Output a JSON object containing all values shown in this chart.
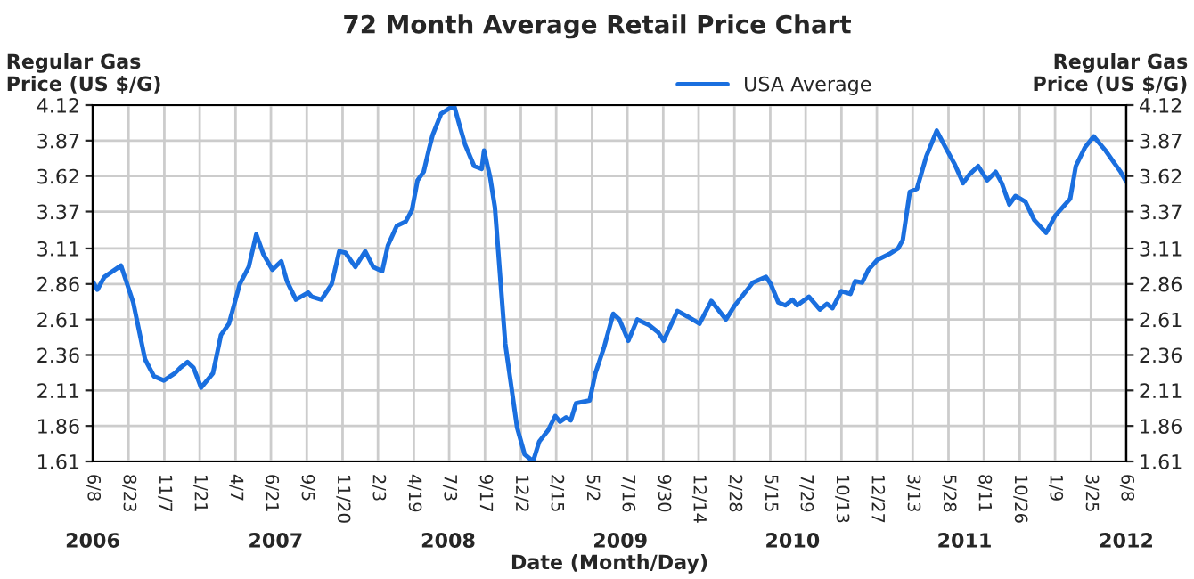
{
  "chart_data": {
    "type": "line",
    "title": "72 Month Average Retail Price Chart",
    "xlabel": "Date (Month/Day)",
    "ylabel": "Regular Gas\nPrice (US $/G)",
    "y2label": "Regular Gas\nPrice (US $/G)",
    "x": [
      "2006-06-08",
      "2006-06-18",
      "2006-07-03",
      "2006-08-07",
      "2006-09-02",
      "2006-09-27",
      "2006-10-16",
      "2006-11-06",
      "2006-11-29",
      "2006-12-11",
      "2006-12-26",
      "2007-01-08",
      "2007-01-24",
      "2007-02-18",
      "2007-03-07",
      "2007-03-24",
      "2007-04-16",
      "2007-05-05",
      "2007-05-21",
      "2007-06-05",
      "2007-06-24",
      "2007-07-13",
      "2007-07-25",
      "2007-08-13",
      "2007-09-08",
      "2007-09-16",
      "2007-10-06",
      "2007-10-28",
      "2007-11-13",
      "2007-11-26",
      "2007-12-17",
      "2008-01-07",
      "2008-01-24",
      "2008-02-12",
      "2008-02-24",
      "2008-03-14",
      "2008-04-02",
      "2008-04-15",
      "2008-04-27",
      "2008-05-10",
      "2008-05-22",
      "2008-05-29",
      "2008-06-16",
      "2008-07-05",
      "2008-07-14",
      "2008-07-24",
      "2008-08-06",
      "2008-08-25",
      "2008-09-10",
      "2008-09-15",
      "2008-09-28",
      "2008-10-08",
      "2008-10-30",
      "2008-11-24",
      "2008-12-10",
      "2008-12-28",
      "2009-01-10",
      "2009-01-29",
      "2009-02-13",
      "2009-02-23",
      "2009-03-08",
      "2009-03-18",
      "2009-03-29",
      "2009-04-27",
      "2009-05-09",
      "2009-05-28",
      "2009-06-16",
      "2009-06-29",
      "2009-07-18",
      "2009-08-06",
      "2009-08-31",
      "2009-09-19",
      "2009-10-01",
      "2009-10-30",
      "2009-11-21",
      "2009-12-16",
      "2010-01-10",
      "2010-02-10",
      "2010-03-01",
      "2010-03-20",
      "2010-04-08",
      "2010-05-06",
      "2010-05-16",
      "2010-06-01",
      "2010-06-16",
      "2010-07-01",
      "2010-07-11",
      "2010-08-05",
      "2010-08-28",
      "2010-09-12",
      "2010-09-24",
      "2010-10-13",
      "2010-11-01",
      "2010-11-11",
      "2010-11-26",
      "2010-12-09",
      "2010-12-28",
      "2011-01-22",
      "2011-02-10",
      "2011-02-20",
      "2011-03-07",
      "2011-03-22",
      "2011-04-11",
      "2011-05-03",
      "2011-05-22",
      "2011-06-09",
      "2011-06-28",
      "2011-07-11",
      "2011-07-30",
      "2011-08-18",
      "2011-09-05",
      "2011-09-18",
      "2011-10-04",
      "2011-10-17",
      "2011-11-07",
      "2011-11-26",
      "2011-12-21",
      "2012-01-09",
      "2012-02-10",
      "2012-02-22",
      "2012-03-12",
      "2012-03-31",
      "2012-04-25",
      "2012-05-14",
      "2012-05-27",
      "2012-06-08"
    ],
    "series": [
      {
        "name": "USA Average",
        "color": "#1a6fdf",
        "values": [
          2.88,
          2.82,
          2.91,
          2.99,
          2.73,
          2.33,
          2.21,
          2.18,
          2.23,
          2.27,
          2.31,
          2.27,
          2.13,
          2.23,
          2.5,
          2.58,
          2.86,
          2.98,
          3.21,
          3.07,
          2.96,
          3.02,
          2.88,
          2.75,
          2.8,
          2.77,
          2.75,
          2.86,
          3.09,
          3.08,
          2.98,
          3.09,
          2.98,
          2.95,
          3.13,
          3.27,
          3.3,
          3.38,
          3.59,
          3.65,
          3.82,
          3.91,
          4.06,
          4.1,
          4.11,
          3.99,
          3.84,
          3.69,
          3.67,
          3.8,
          3.61,
          3.4,
          2.44,
          1.85,
          1.66,
          1.61,
          1.75,
          1.83,
          1.93,
          1.89,
          1.92,
          1.9,
          2.02,
          2.04,
          2.23,
          2.42,
          2.65,
          2.61,
          2.46,
          2.61,
          2.57,
          2.52,
          2.46,
          2.67,
          2.63,
          2.58,
          2.74,
          2.61,
          2.71,
          2.79,
          2.87,
          2.91,
          2.86,
          2.73,
          2.71,
          2.75,
          2.71,
          2.77,
          2.68,
          2.72,
          2.69,
          2.81,
          2.79,
          2.88,
          2.87,
          2.96,
          3.03,
          3.07,
          3.11,
          3.17,
          3.51,
          3.53,
          3.76,
          3.94,
          3.82,
          3.71,
          3.57,
          3.63,
          3.69,
          3.59,
          3.65,
          3.57,
          3.42,
          3.48,
          3.44,
          3.31,
          3.22,
          3.34,
          3.46,
          3.69,
          3.82,
          3.9,
          3.8,
          3.71,
          3.65,
          3.58
        ]
      }
    ],
    "xlim": [
      "2006-06-08",
      "2012-06-08"
    ],
    "xticks": [
      {
        "value": "2006-06-08",
        "label": "6/8"
      },
      {
        "value": "2006-08-23",
        "label": "8/23"
      },
      {
        "value": "2006-11-07",
        "label": "11/7"
      },
      {
        "value": "2007-01-21",
        "label": "1/21"
      },
      {
        "value": "2007-04-07",
        "label": "4/7"
      },
      {
        "value": "2007-06-21",
        "label": "6/21"
      },
      {
        "value": "2007-09-05",
        "label": "9/5"
      },
      {
        "value": "2007-11-20",
        "label": "11/20"
      },
      {
        "value": "2008-02-03",
        "label": "2/3"
      },
      {
        "value": "2008-04-19",
        "label": "4/19"
      },
      {
        "value": "2008-07-03",
        "label": "7/3"
      },
      {
        "value": "2008-09-17",
        "label": "9/17"
      },
      {
        "value": "2008-12-02",
        "label": "12/2"
      },
      {
        "value": "2009-02-15",
        "label": "2/15"
      },
      {
        "value": "2009-05-02",
        "label": "5/2"
      },
      {
        "value": "2009-07-16",
        "label": "7/16"
      },
      {
        "value": "2009-09-30",
        "label": "9/30"
      },
      {
        "value": "2009-12-14",
        "label": "12/14"
      },
      {
        "value": "2010-02-28",
        "label": "2/28"
      },
      {
        "value": "2010-05-15",
        "label": "5/15"
      },
      {
        "value": "2010-07-29",
        "label": "7/29"
      },
      {
        "value": "2010-10-13",
        "label": "10/13"
      },
      {
        "value": "2010-12-27",
        "label": "12/27"
      },
      {
        "value": "2011-03-13",
        "label": "3/13"
      },
      {
        "value": "2011-05-28",
        "label": "5/28"
      },
      {
        "value": "2011-08-11",
        "label": "8/11"
      },
      {
        "value": "2011-10-26",
        "label": "10/26"
      },
      {
        "value": "2012-01-09",
        "label": "1/9"
      },
      {
        "value": "2012-03-25",
        "label": "3/25"
      },
      {
        "value": "2012-06-08",
        "label": "6/8"
      }
    ],
    "x2lim": [
      "2006-06-08",
      "2012-06-08"
    ],
    "x2ticks": [
      {
        "value": "2006-06-08",
        "label": "2006"
      },
      {
        "value": "2007-07-01",
        "label": "2007"
      },
      {
        "value": "2008-07-01",
        "label": "2008"
      },
      {
        "value": "2009-07-01",
        "label": "2009"
      },
      {
        "value": "2010-07-01",
        "label": "2010"
      },
      {
        "value": "2011-07-01",
        "label": "2011"
      },
      {
        "value": "2012-06-08",
        "label": "2012"
      }
    ],
    "ylim": [
      1.61,
      4.12
    ],
    "yticks": [
      1.61,
      1.86,
      2.11,
      2.36,
      2.61,
      2.86,
      3.11,
      3.37,
      3.62,
      3.87,
      4.12
    ],
    "y2lim": [
      1.61,
      4.12
    ],
    "y2ticks": [
      1.61,
      1.86,
      2.11,
      2.36,
      2.61,
      2.86,
      3.11,
      3.37,
      3.62,
      3.87,
      4.12
    ],
    "grid": true,
    "legend": "top",
    "line_style": "solid",
    "marker": "none"
  }
}
